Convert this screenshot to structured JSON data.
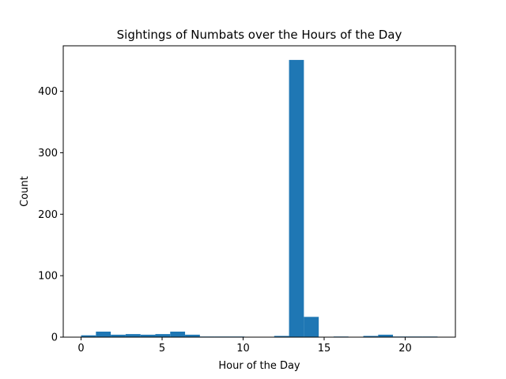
{
  "chart_data": {
    "type": "bar",
    "title": "Sightings of Numbats over the Hours of the Day",
    "xlabel": "Hour of the Day",
    "ylabel": "Count",
    "xlim": [
      -1.1,
      23.1
    ],
    "ylim": [
      0,
      474
    ],
    "x_ticks": [
      0,
      5,
      10,
      15,
      20
    ],
    "y_ticks": [
      0,
      100,
      200,
      300,
      400
    ],
    "bin_edges": [
      0,
      0.917,
      1.833,
      2.75,
      3.667,
      4.583,
      5.5,
      6.417,
      7.333,
      8.25,
      9.167,
      10.083,
      11.0,
      11.917,
      12.833,
      13.75,
      14.667,
      15.583,
      16.5,
      17.417,
      18.333,
      19.25,
      20.167,
      21.083,
      22.0
    ],
    "values": [
      3,
      9,
      4,
      5,
      4,
      5,
      9,
      4,
      1,
      1,
      1,
      0,
      0,
      2,
      451,
      33,
      0,
      1,
      0,
      2,
      4,
      1,
      1,
      1
    ],
    "bar_color": "#1f77b4",
    "grid": false
  }
}
